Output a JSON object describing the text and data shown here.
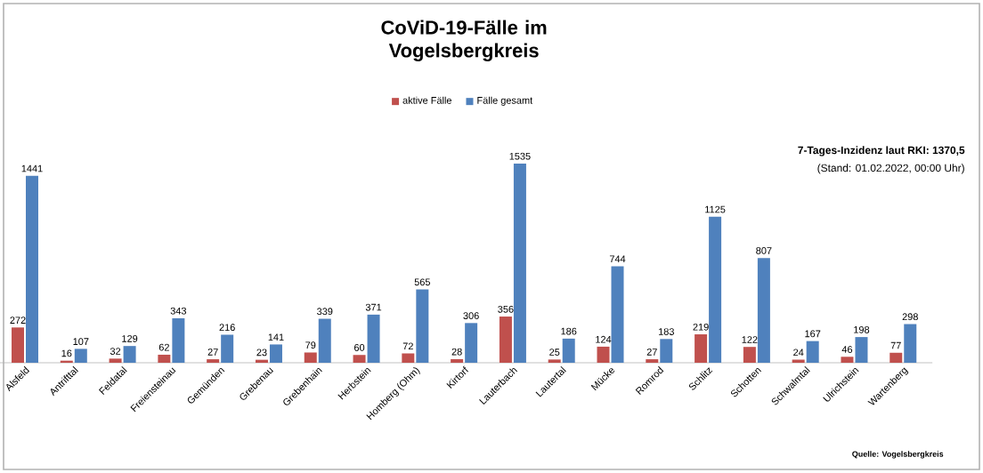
{
  "chart_data": {
    "type": "bar",
    "title": "CoViD-19-Fälle im Vogelsbergkreis",
    "categories": [
      "Alsfeld",
      "Antrifttal",
      "Feldatal",
      "Freiensteinau",
      "Gemünden",
      "Grebenau",
      "Grebenhain",
      "Herbstein",
      "Homberg (Ohm)",
      "Kirtorf",
      "Lauterbach",
      "Lautertal",
      "Mücke",
      "Romrod",
      "Schlitz",
      "Schotten",
      "Schwalmtal",
      "Ulrichstein",
      "Wartenberg"
    ],
    "series": [
      {
        "name": "aktive Fälle",
        "color": "#c0504d",
        "values": [
          272,
          16,
          32,
          62,
          27,
          23,
          79,
          60,
          72,
          28,
          356,
          25,
          124,
          27,
          219,
          122,
          24,
          46,
          77
        ]
      },
      {
        "name": "Fälle gesamt",
        "color": "#4f81bd",
        "values": [
          1441,
          107,
          129,
          343,
          216,
          141,
          339,
          371,
          565,
          306,
          1535,
          186,
          744,
          183,
          1125,
          807,
          167,
          198,
          298
        ]
      }
    ],
    "annotations": [
      "**7-Tages-Inzidenz laut RKI: 1370,5**",
      "(Stand: 01.02.2022, 00:00 Uhr)",
      "**Quelle: Vogelsbergkreis**"
    ],
    "data_labels": true,
    "legend": "top"
  }
}
